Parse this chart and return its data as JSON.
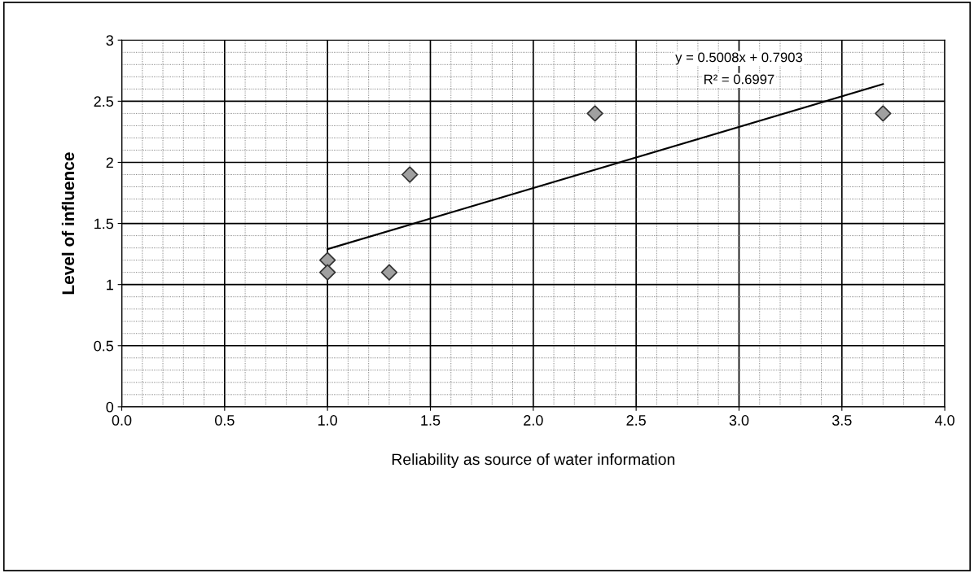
{
  "chart_data": {
    "type": "scatter",
    "xlabel": "Reliability as source of water information",
    "ylabel": "Level of influence",
    "series": [
      {
        "color": "#a0a0a0",
        "marker": "diamond",
        "x": [
          1.0,
          1.0,
          1.3,
          1.4,
          2.3,
          3.7
        ],
        "values": [
          1.2,
          1.1,
          1.1,
          1.9,
          2.4,
          2.4
        ]
      },
      {
        "type": "line",
        "color": "#000000",
        "marker": "none",
        "x": [
          1.0,
          3.7
        ],
        "values": [
          1.29,
          2.64
        ]
      }
    ],
    "annotations": [
      "y = 0.5008x + 0.7903",
      "R² = 0.6997"
    ],
    "xlim": [
      0,
      4
    ],
    "ylim": [
      0,
      3
    ],
    "xticks": [
      {
        "value": 0,
        "label": "0.0"
      },
      {
        "value": 0.5,
        "label": "0.5"
      },
      {
        "value": 1,
        "label": "1.0"
      },
      {
        "value": 1.5,
        "label": "1.5"
      },
      {
        "value": 2,
        "label": "2.0"
      },
      {
        "value": 2.5,
        "label": "2.5"
      },
      {
        "value": 3,
        "label": "3.0"
      },
      {
        "value": 3.5,
        "label": "3.5"
      },
      {
        "value": 4,
        "label": "4.0"
      }
    ],
    "yticks": [
      0,
      0.5,
      1,
      1.5,
      2,
      2.5,
      3
    ],
    "grid": true,
    "legend": false
  }
}
